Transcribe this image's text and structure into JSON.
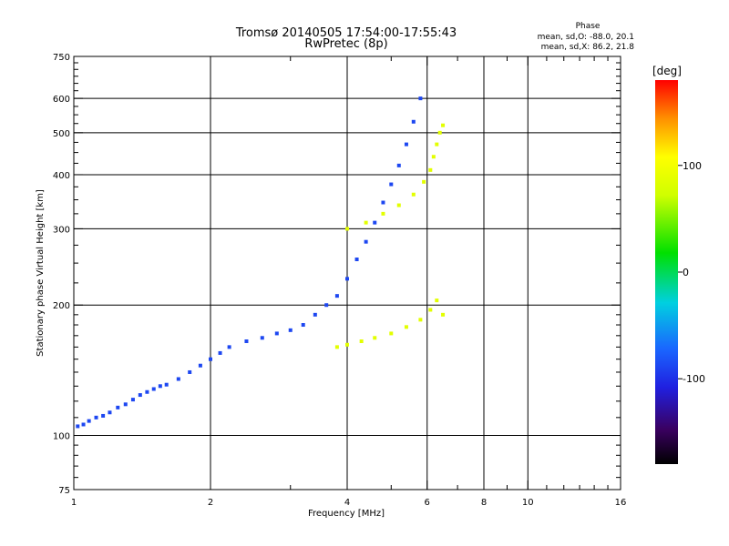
{
  "chart_data": {
    "type": "scatter",
    "title": "Tromsø 20140505 17:54:00-17:55:43",
    "subtitle": "RwPretec (8p)",
    "xlabel": "Frequency [MHz]",
    "ylabel": "Stationary phase Virtual Height [km]",
    "x_scale": "log",
    "y_scale": "log",
    "xlim": [
      1,
      16
    ],
    "ylim": [
      75,
      750
    ],
    "x_ticks": [
      1,
      2,
      4,
      6,
      8,
      10,
      16
    ],
    "y_ticks": [
      75,
      100,
      200,
      300,
      400,
      500,
      600,
      750
    ],
    "grid": true,
    "colorbar": {
      "label": "[deg]",
      "range": [
        -180,
        180
      ],
      "ticks": [
        100,
        0,
        -100
      ]
    },
    "phase_stats": {
      "heading": "Phase",
      "line_o": "mean, sd,O: -88.0, 20.1",
      "line_x": "mean, sd,X:  86.2, 21.8"
    },
    "series": [
      {
        "trace": "O",
        "phase_mean_deg": -88.0,
        "phase_sd_deg": 20.1,
        "points": [
          [
            1.02,
            105
          ],
          [
            1.05,
            106
          ],
          [
            1.08,
            108
          ],
          [
            1.12,
            110
          ],
          [
            1.16,
            111
          ],
          [
            1.2,
            113
          ],
          [
            1.25,
            116
          ],
          [
            1.3,
            118
          ],
          [
            1.35,
            121
          ],
          [
            1.4,
            124
          ],
          [
            1.45,
            126
          ],
          [
            1.5,
            128
          ],
          [
            1.55,
            130
          ],
          [
            1.6,
            131
          ],
          [
            1.7,
            135
          ],
          [
            1.8,
            140
          ],
          [
            1.9,
            145
          ],
          [
            2.0,
            150
          ],
          [
            2.1,
            155
          ],
          [
            2.2,
            160
          ],
          [
            2.4,
            165
          ],
          [
            2.6,
            168
          ],
          [
            2.8,
            172
          ],
          [
            3.0,
            175
          ],
          [
            3.2,
            180
          ],
          [
            3.4,
            190
          ],
          [
            3.6,
            200
          ],
          [
            3.8,
            210
          ],
          [
            4.0,
            230
          ],
          [
            4.2,
            255
          ],
          [
            4.4,
            280
          ],
          [
            4.6,
            310
          ],
          [
            4.8,
            345
          ],
          [
            5.0,
            380
          ],
          [
            5.2,
            420
          ],
          [
            5.4,
            470
          ],
          [
            5.6,
            530
          ],
          [
            5.8,
            600
          ]
        ]
      },
      {
        "trace": "X",
        "phase_mean_deg": 86.2,
        "phase_sd_deg": 21.8,
        "points": [
          [
            3.8,
            160
          ],
          [
            4.0,
            162
          ],
          [
            4.3,
            165
          ],
          [
            4.6,
            168
          ],
          [
            5.0,
            172
          ],
          [
            5.4,
            178
          ],
          [
            5.8,
            185
          ],
          [
            6.1,
            195
          ],
          [
            6.3,
            205
          ],
          [
            6.5,
            190
          ],
          [
            4.0,
            300
          ],
          [
            4.4,
            310
          ],
          [
            4.8,
            325
          ],
          [
            5.2,
            340
          ],
          [
            5.6,
            360
          ],
          [
            5.9,
            385
          ],
          [
            6.1,
            410
          ],
          [
            6.2,
            440
          ],
          [
            6.3,
            470
          ],
          [
            6.4,
            500
          ],
          [
            6.5,
            520
          ]
        ]
      }
    ]
  }
}
